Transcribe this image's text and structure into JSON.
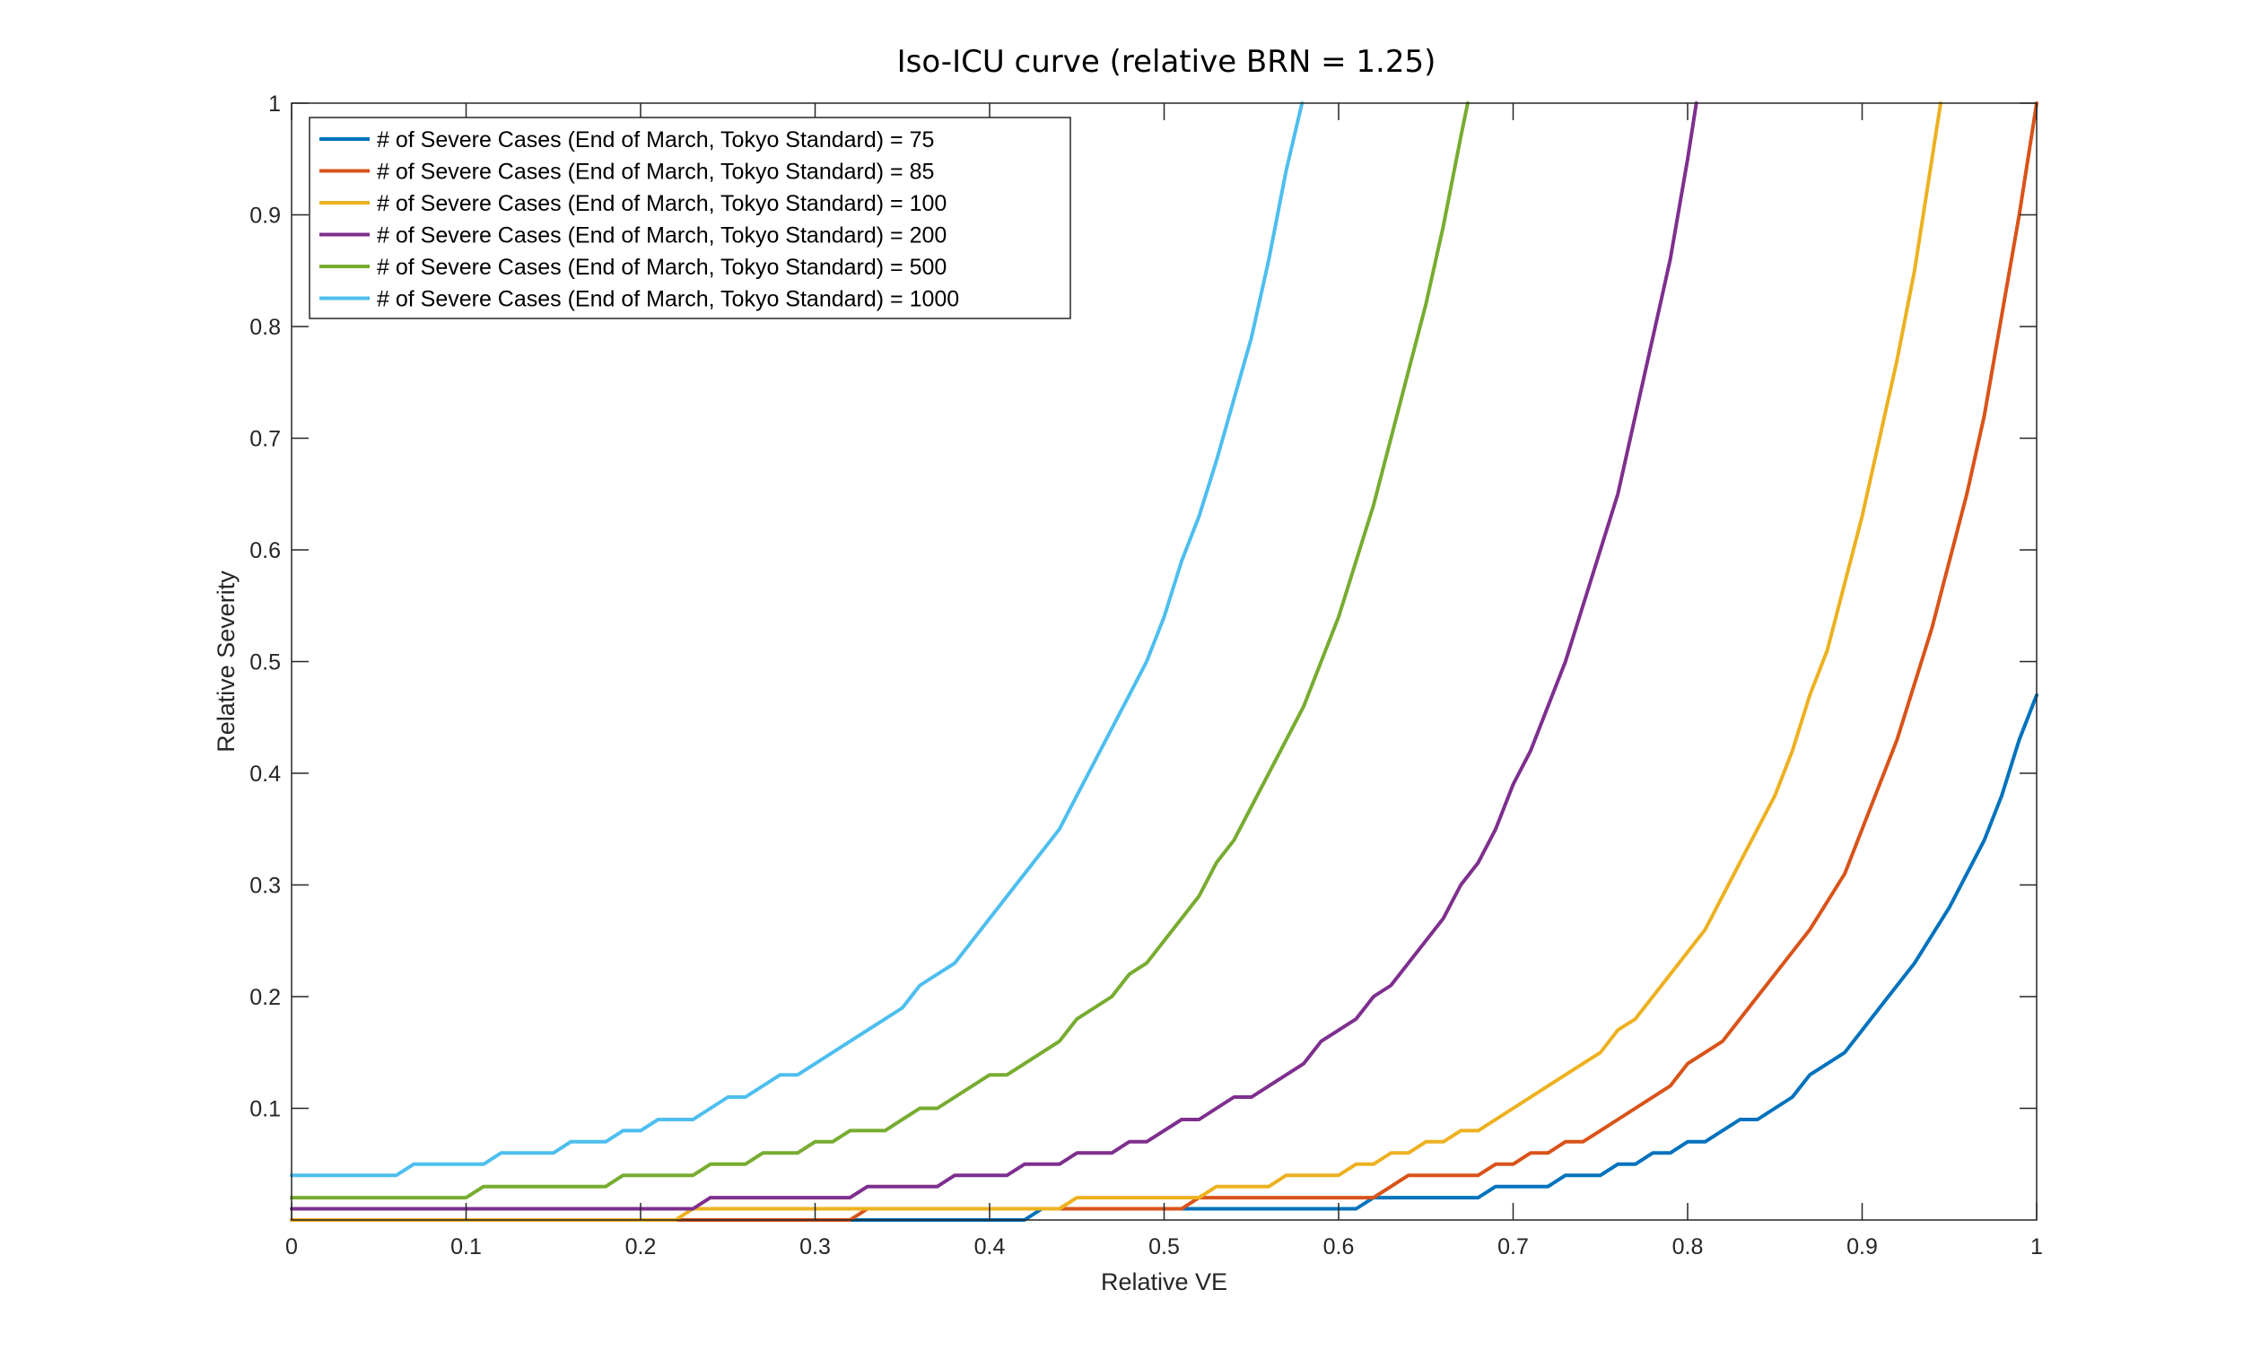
{
  "chart_data": {
    "type": "line",
    "title": "Iso-ICU curve (relative BRN = 1.25)",
    "xlabel": "Relative VE",
    "ylabel": "Relative Severity",
    "xlim": [
      0,
      1
    ],
    "ylim": [
      0,
      1
    ],
    "xticks": [
      "0",
      "0.1",
      "0.2",
      "0.3",
      "0.4",
      "0.5",
      "0.6",
      "0.7",
      "0.8",
      "0.9",
      "1"
    ],
    "yticks": [
      "0.1",
      "0.2",
      "0.3",
      "0.4",
      "0.5",
      "0.6",
      "0.7",
      "0.8",
      "0.9",
      "1"
    ],
    "grid": false,
    "legend_position": "top-left",
    "series": [
      {
        "name": "# of Severe Cases (End of March, Tokyo Standard) = 75",
        "color": "#0072BD",
        "points": [
          [
            0,
            0
          ],
          [
            0.42,
            0
          ],
          [
            0.43,
            0.01
          ],
          [
            0.61,
            0.01
          ],
          [
            0.62,
            0.02
          ],
          [
            0.68,
            0.02
          ],
          [
            0.69,
            0.03
          ],
          [
            0.72,
            0.03
          ],
          [
            0.73,
            0.04
          ],
          [
            0.75,
            0.04
          ],
          [
            0.76,
            0.05
          ],
          [
            0.77,
            0.05
          ],
          [
            0.78,
            0.06
          ],
          [
            0.79,
            0.06
          ],
          [
            0.8,
            0.07
          ],
          [
            0.81,
            0.07
          ],
          [
            0.83,
            0.09
          ],
          [
            0.84,
            0.09
          ],
          [
            0.86,
            0.11
          ],
          [
            0.87,
            0.13
          ],
          [
            0.89,
            0.15
          ],
          [
            0.91,
            0.19
          ],
          [
            0.93,
            0.23
          ],
          [
            0.95,
            0.28
          ],
          [
            0.97,
            0.34
          ],
          [
            0.98,
            0.38
          ],
          [
            0.99,
            0.43
          ],
          [
            1.0,
            0.47
          ]
        ]
      },
      {
        "name": "# of Severe Cases (End of March, Tokyo Standard) = 85",
        "color": "#D95319",
        "points": [
          [
            0,
            0
          ],
          [
            0.32,
            0
          ],
          [
            0.33,
            0.01
          ],
          [
            0.51,
            0.01
          ],
          [
            0.52,
            0.02
          ],
          [
            0.62,
            0.02
          ],
          [
            0.63,
            0.03
          ],
          [
            0.64,
            0.04
          ],
          [
            0.68,
            0.04
          ],
          [
            0.69,
            0.05
          ],
          [
            0.7,
            0.05
          ],
          [
            0.71,
            0.06
          ],
          [
            0.72,
            0.06
          ],
          [
            0.73,
            0.07
          ],
          [
            0.74,
            0.07
          ],
          [
            0.75,
            0.08
          ],
          [
            0.76,
            0.09
          ],
          [
            0.77,
            0.1
          ],
          [
            0.79,
            0.12
          ],
          [
            0.8,
            0.14
          ],
          [
            0.82,
            0.16
          ],
          [
            0.84,
            0.2
          ],
          [
            0.86,
            0.24
          ],
          [
            0.87,
            0.26
          ],
          [
            0.89,
            0.31
          ],
          [
            0.9,
            0.35
          ],
          [
            0.92,
            0.43
          ],
          [
            0.94,
            0.53
          ],
          [
            0.96,
            0.65
          ],
          [
            0.97,
            0.72
          ],
          [
            0.98,
            0.81
          ],
          [
            0.99,
            0.9
          ],
          [
            1.0,
            1.0
          ]
        ]
      },
      {
        "name": "# of Severe Cases (End of March, Tokyo Standard) = 100",
        "color": "#EDB120",
        "points": [
          [
            0,
            0
          ],
          [
            0.22,
            0
          ],
          [
            0.23,
            0.01
          ],
          [
            0.44,
            0.01
          ],
          [
            0.45,
            0.02
          ],
          [
            0.52,
            0.02
          ],
          [
            0.53,
            0.03
          ],
          [
            0.56,
            0.03
          ],
          [
            0.57,
            0.04
          ],
          [
            0.6,
            0.04
          ],
          [
            0.61,
            0.05
          ],
          [
            0.62,
            0.05
          ],
          [
            0.63,
            0.06
          ],
          [
            0.64,
            0.06
          ],
          [
            0.65,
            0.07
          ],
          [
            0.66,
            0.07
          ],
          [
            0.67,
            0.08
          ],
          [
            0.68,
            0.08
          ],
          [
            0.7,
            0.1
          ],
          [
            0.72,
            0.12
          ],
          [
            0.74,
            0.14
          ],
          [
            0.75,
            0.15
          ],
          [
            0.76,
            0.17
          ],
          [
            0.77,
            0.18
          ],
          [
            0.79,
            0.22
          ],
          [
            0.81,
            0.26
          ],
          [
            0.83,
            0.32
          ],
          [
            0.85,
            0.38
          ],
          [
            0.86,
            0.42
          ],
          [
            0.87,
            0.47
          ],
          [
            0.88,
            0.51
          ],
          [
            0.9,
            0.63
          ],
          [
            0.92,
            0.77
          ],
          [
            0.93,
            0.85
          ],
          [
            0.94,
            0.95
          ],
          [
            0.945,
            1.0
          ]
        ]
      },
      {
        "name": "# of Severe Cases (End of March, Tokyo Standard) = 200",
        "color": "#7E2F8E",
        "points": [
          [
            0,
            0.01
          ],
          [
            0.23,
            0.01
          ],
          [
            0.24,
            0.02
          ],
          [
            0.32,
            0.02
          ],
          [
            0.33,
            0.03
          ],
          [
            0.37,
            0.03
          ],
          [
            0.38,
            0.04
          ],
          [
            0.41,
            0.04
          ],
          [
            0.42,
            0.05
          ],
          [
            0.44,
            0.05
          ],
          [
            0.45,
            0.06
          ],
          [
            0.47,
            0.06
          ],
          [
            0.48,
            0.07
          ],
          [
            0.49,
            0.07
          ],
          [
            0.51,
            0.09
          ],
          [
            0.52,
            0.09
          ],
          [
            0.54,
            0.11
          ],
          [
            0.55,
            0.11
          ],
          [
            0.58,
            0.14
          ],
          [
            0.59,
            0.16
          ],
          [
            0.61,
            0.18
          ],
          [
            0.62,
            0.2
          ],
          [
            0.63,
            0.21
          ],
          [
            0.66,
            0.27
          ],
          [
            0.67,
            0.3
          ],
          [
            0.68,
            0.32
          ],
          [
            0.69,
            0.35
          ],
          [
            0.7,
            0.39
          ],
          [
            0.71,
            0.42
          ],
          [
            0.73,
            0.5
          ],
          [
            0.74,
            0.55
          ],
          [
            0.76,
            0.65
          ],
          [
            0.77,
            0.72
          ],
          [
            0.79,
            0.86
          ],
          [
            0.8,
            0.95
          ],
          [
            0.805,
            1.0
          ]
        ]
      },
      {
        "name": "# of Severe Cases (End of March, Tokyo Standard) = 500",
        "color": "#77AC30",
        "points": [
          [
            0,
            0.02
          ],
          [
            0.1,
            0.02
          ],
          [
            0.11,
            0.03
          ],
          [
            0.18,
            0.03
          ],
          [
            0.19,
            0.04
          ],
          [
            0.23,
            0.04
          ],
          [
            0.24,
            0.05
          ],
          [
            0.26,
            0.05
          ],
          [
            0.27,
            0.06
          ],
          [
            0.29,
            0.06
          ],
          [
            0.3,
            0.07
          ],
          [
            0.31,
            0.07
          ],
          [
            0.32,
            0.08
          ],
          [
            0.34,
            0.08
          ],
          [
            0.36,
            0.1
          ],
          [
            0.37,
            0.1
          ],
          [
            0.4,
            0.13
          ],
          [
            0.41,
            0.13
          ],
          [
            0.44,
            0.16
          ],
          [
            0.45,
            0.18
          ],
          [
            0.47,
            0.2
          ],
          [
            0.48,
            0.22
          ],
          [
            0.49,
            0.23
          ],
          [
            0.52,
            0.29
          ],
          [
            0.53,
            0.32
          ],
          [
            0.54,
            0.34
          ],
          [
            0.58,
            0.46
          ],
          [
            0.6,
            0.54
          ],
          [
            0.62,
            0.64
          ],
          [
            0.64,
            0.76
          ],
          [
            0.65,
            0.82
          ],
          [
            0.66,
            0.89
          ],
          [
            0.67,
            0.97
          ],
          [
            0.674,
            1.0
          ]
        ]
      },
      {
        "name": "# of Severe Cases (End of March, Tokyo Standard) = 1000",
        "color": "#4DBEEE",
        "points": [
          [
            0,
            0.04
          ],
          [
            0.06,
            0.04
          ],
          [
            0.07,
            0.05
          ],
          [
            0.1,
            0.05
          ],
          [
            0.11,
            0.05
          ],
          [
            0.12,
            0.06
          ],
          [
            0.15,
            0.06
          ],
          [
            0.16,
            0.07
          ],
          [
            0.18,
            0.07
          ],
          [
            0.19,
            0.08
          ],
          [
            0.2,
            0.08
          ],
          [
            0.21,
            0.09
          ],
          [
            0.23,
            0.09
          ],
          [
            0.25,
            0.11
          ],
          [
            0.26,
            0.11
          ],
          [
            0.28,
            0.13
          ],
          [
            0.29,
            0.13
          ],
          [
            0.35,
            0.19
          ],
          [
            0.36,
            0.21
          ],
          [
            0.38,
            0.23
          ],
          [
            0.44,
            0.35
          ],
          [
            0.46,
            0.41
          ],
          [
            0.48,
            0.47
          ],
          [
            0.49,
            0.5
          ],
          [
            0.5,
            0.54
          ],
          [
            0.51,
            0.59
          ],
          [
            0.52,
            0.63
          ],
          [
            0.53,
            0.68
          ],
          [
            0.55,
            0.79
          ],
          [
            0.56,
            0.86
          ],
          [
            0.57,
            0.94
          ],
          [
            0.579,
            1.0
          ]
        ]
      }
    ]
  }
}
